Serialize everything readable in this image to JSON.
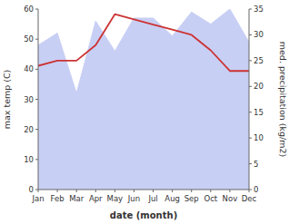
{
  "chart_data": {
    "type": "line",
    "categories": [
      "Jan",
      "Feb",
      "Mar",
      "Apr",
      "May",
      "Jun",
      "Jul",
      "Aug",
      "Sep",
      "Oct",
      "Nov",
      "Dec"
    ],
    "xlabel": "date (month)",
    "ylabel": "max temp (C)",
    "y2label": "med. precipitation (kg/m2)",
    "series": [
      {
        "type": "area",
        "color": "#c8cff5",
        "values": [
          48,
          52,
          32,
          56,
          46,
          57,
          57,
          51,
          59,
          55,
          60,
          49
        ]
      },
      {
        "type": "line",
        "color": "#cc3333",
        "axis": "y2",
        "values": [
          24,
          25,
          25,
          28,
          34,
          33,
          32,
          31,
          30,
          27,
          23,
          23
        ]
      }
    ],
    "ylim": [
      0,
      60
    ],
    "yticks": [
      0,
      10,
      20,
      30,
      40,
      50,
      60
    ],
    "y2lim": [
      0,
      35
    ],
    "y2ticks": [
      0,
      5,
      10,
      15,
      20,
      25,
      30,
      35
    ],
    "grid": false
  }
}
